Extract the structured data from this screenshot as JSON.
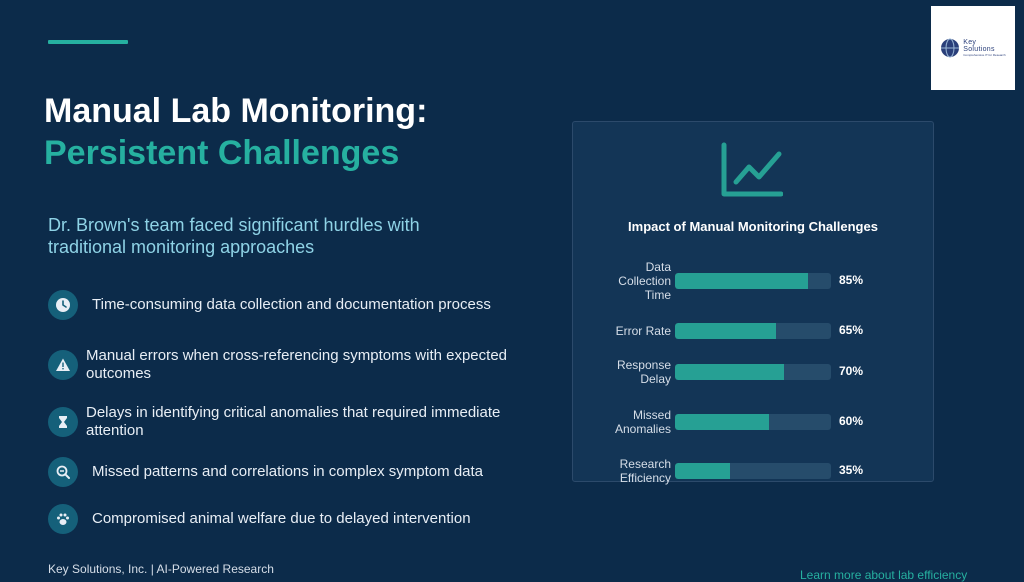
{
  "logo": {
    "line1": "Key",
    "line2": "Solutions",
    "tagline": "Comprehensive IT for Research"
  },
  "title": {
    "line1": "Manual Lab Monitoring:",
    "line2": "Persistent Challenges"
  },
  "subtitle": "Dr. Brown's team faced significant hurdles with traditional monitoring approaches",
  "items": [
    {
      "icon": "clock-icon",
      "text": "Time-consuming data collection and documentation process"
    },
    {
      "icon": "warning-icon",
      "text": "Manual errors when cross-referencing symptoms with expected outcomes"
    },
    {
      "icon": "hourglass-icon",
      "text": "Delays in identifying critical anomalies that required immediate attention"
    },
    {
      "icon": "magnifier-minus-icon",
      "text": "Missed patterns and correlations in complex symptom data"
    },
    {
      "icon": "paw-icon",
      "text": "Compromised animal welfare due to delayed intervention"
    }
  ],
  "footer": "Key Solutions, Inc. | AI-Powered Research",
  "learn_more": "Learn more about lab efficiency",
  "colors": {
    "background": "#0c2b4a",
    "accent": "#26b0a0",
    "panel": "#133556",
    "bar_fill": "#26a094",
    "bar_track": "#264c6b"
  },
  "chart_data": {
    "type": "bar",
    "orientation": "horizontal",
    "title": "Impact of Manual Monitoring Challenges",
    "categories": [
      "Data Collection Time",
      "Error Rate",
      "Response Delay",
      "Missed Anomalies",
      "Research Efficiency"
    ],
    "values": [
      85,
      65,
      70,
      60,
      35
    ],
    "value_labels": [
      "85%",
      "65%",
      "70%",
      "60%",
      "35%"
    ],
    "xlim": [
      0,
      100
    ],
    "unit": "%"
  }
}
